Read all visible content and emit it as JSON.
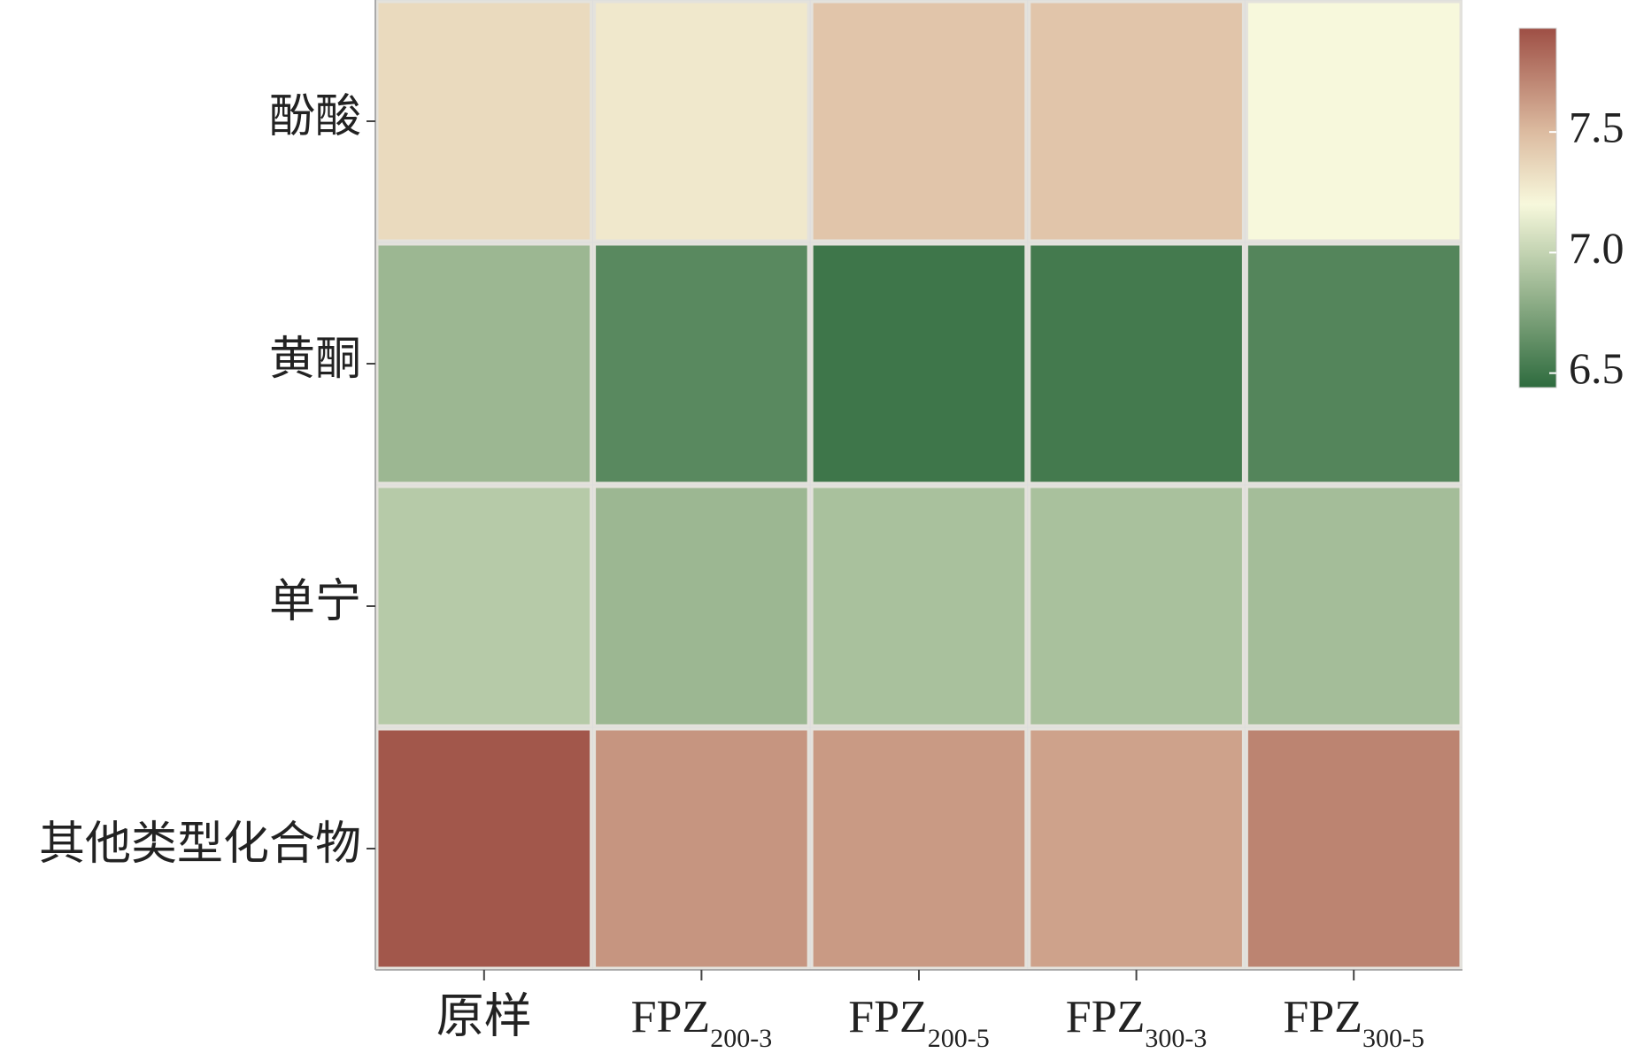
{
  "chart_data": {
    "type": "heatmap",
    "x_categories": [
      "原样",
      {
        "base": "FPZ",
        "sub": "200-3"
      },
      {
        "base": "FPZ",
        "sub": "200-5"
      },
      {
        "base": "FPZ",
        "sub": "300-3"
      },
      {
        "base": "FPZ",
        "sub": "300-5"
      }
    ],
    "y_categories": [
      "酚酸",
      "黄酮",
      "单宁",
      "其他类型化合物"
    ],
    "values": [
      [
        7.35,
        7.28,
        7.45,
        7.45,
        7.2
      ],
      [
        6.85,
        6.6,
        6.5,
        6.52,
        6.58
      ],
      [
        6.95,
        6.85,
        6.9,
        6.9,
        6.88
      ],
      [
        7.9,
        7.65,
        7.63,
        7.6,
        7.72
      ]
    ],
    "zlim": [
      6.44,
      7.93
    ],
    "zticks": [
      6.5,
      {
        "value": 7.0,
        "label": "7.0"
      },
      7.5
    ],
    "colormap": [
      {
        "value": 6.44,
        "color": "#2e6b3e"
      },
      {
        "value": 6.8,
        "color": "#8fae88"
      },
      {
        "value": 7.2,
        "color": "#f7f8dc"
      },
      {
        "value": 7.5,
        "color": "#dcbba0"
      },
      {
        "value": 7.93,
        "color": "#9e4f45"
      }
    ]
  }
}
